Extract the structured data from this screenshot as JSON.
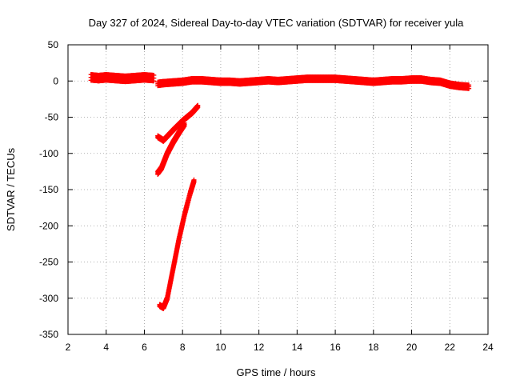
{
  "chart_data": {
    "type": "scatter",
    "title": "Day 327 of 2024, Sidereal Day-to-day VTEC variation (SDTVAR) for receiver yula",
    "xlabel": "GPS time / hours",
    "ylabel": "SDTVAR / TECUs",
    "xlim": [
      2,
      24
    ],
    "ylim": [
      -350,
      50
    ],
    "xticks": [
      "2",
      "4",
      "6",
      "8",
      "10",
      "12",
      "14",
      "16",
      "18",
      "20",
      "22",
      "24"
    ],
    "yticks": [
      "50",
      "0",
      "-50",
      "-100",
      "-150",
      "-200",
      "-250",
      "-300",
      "-350"
    ],
    "grid": true,
    "marker": "+",
    "color": "#ff0000",
    "series": [
      {
        "x": [
          3.2,
          3.6,
          4.0,
          4.5,
          5.0,
          5.5,
          6.0,
          6.5
        ],
        "y": [
          5,
          4,
          5,
          4,
          3,
          4,
          5,
          4
        ],
        "spread": 8
      },
      {
        "x": [
          6.7,
          7.0,
          7.5,
          8.0,
          8.5,
          9.0,
          9.5,
          10.0,
          10.5,
          11.0,
          11.5,
          12.0,
          12.5,
          13.0,
          13.5,
          14.0,
          14.5,
          15.0,
          15.5,
          16.0,
          16.5,
          17.0,
          17.5,
          18.0,
          18.5,
          19.0,
          19.5,
          20.0,
          20.5,
          21.0,
          21.5,
          22.0,
          22.5,
          23.0
        ],
        "y": [
          -4,
          -3,
          -2,
          -1,
          1,
          1,
          0,
          -1,
          -1,
          -2,
          -1,
          0,
          1,
          0,
          1,
          2,
          3,
          3,
          3,
          3,
          2,
          1,
          0,
          -1,
          0,
          1,
          1,
          2,
          2,
          0,
          -1,
          -5,
          -7,
          -8
        ],
        "spread": 5
      },
      {
        "x": [
          6.7,
          7.0,
          7.5,
          8.0,
          8.5,
          8.8
        ],
        "y": [
          -77,
          -82,
          -68,
          -55,
          -44,
          -35
        ],
        "spread": 3
      },
      {
        "x": [
          6.7,
          6.9,
          7.2,
          7.5,
          7.8,
          8.1
        ],
        "y": [
          -127,
          -120,
          -100,
          -85,
          -72,
          -60
        ],
        "spread": 4
      },
      {
        "x": [
          6.8,
          7.0,
          7.2,
          7.5,
          7.8,
          8.1,
          8.4,
          8.6
        ],
        "y": [
          -310,
          -313,
          -300,
          -260,
          -220,
          -185,
          -155,
          -138
        ],
        "spread": 3
      }
    ]
  }
}
